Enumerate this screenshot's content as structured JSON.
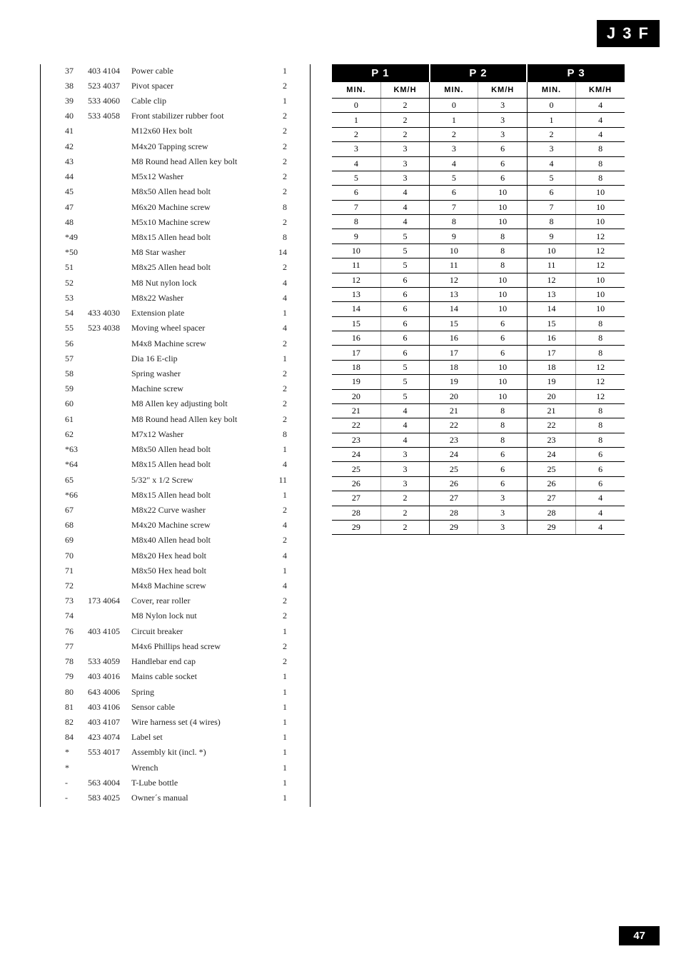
{
  "header_tag": "J 3 F",
  "footer_page": "47",
  "parts": [
    {
      "n": "37",
      "code": "403 4104",
      "desc": "Power cable",
      "q": "1"
    },
    {
      "n": "38",
      "code": "523 4037",
      "desc": "Pivot spacer",
      "q": "2"
    },
    {
      "n": "39",
      "code": "533 4060",
      "desc": "Cable clip",
      "q": "1"
    },
    {
      "n": "40",
      "code": "533 4058",
      "desc": "Front stabilizer rubber foot",
      "q": "2"
    },
    {
      "n": "41",
      "code": "",
      "desc": "M12x60 Hex bolt",
      "q": "2"
    },
    {
      "n": "42",
      "code": "",
      "desc": "M4x20 Tapping screw",
      "q": "2"
    },
    {
      "n": "43",
      "code": "",
      "desc": "M8 Round head Allen key bolt",
      "q": "2"
    },
    {
      "n": "44",
      "code": "",
      "desc": "M5x12 Washer",
      "q": "2"
    },
    {
      "n": "45",
      "code": "",
      "desc": "M8x50 Allen head bolt",
      "q": "2"
    },
    {
      "n": "47",
      "code": "",
      "desc": "M6x20 Machine screw",
      "q": "8"
    },
    {
      "n": "48",
      "code": "",
      "desc": "M5x10 Machine screw",
      "q": "2"
    },
    {
      "n": "*49",
      "code": "",
      "desc": "M8x15 Allen head bolt",
      "q": "8"
    },
    {
      "n": "*50",
      "code": "",
      "desc": "M8 Star washer",
      "q": "14"
    },
    {
      "n": "51",
      "code": "",
      "desc": "M8x25 Allen head bolt",
      "q": "2"
    },
    {
      "n": "52",
      "code": "",
      "desc": "M8 Nut nylon lock",
      "q": "4"
    },
    {
      "n": "53",
      "code": "",
      "desc": "M8x22 Washer",
      "q": "4"
    },
    {
      "n": "54",
      "code": "433 4030",
      "desc": "Extension plate",
      "q": "1"
    },
    {
      "n": "55",
      "code": "523 4038",
      "desc": "Moving wheel spacer",
      "q": "4"
    },
    {
      "n": "56",
      "code": "",
      "desc": "M4x8 Machine screw",
      "q": "2"
    },
    {
      "n": "57",
      "code": "",
      "desc": "Dia 16 E-clip",
      "q": "1"
    },
    {
      "n": "58",
      "code": "",
      "desc": "Spring washer",
      "q": "2"
    },
    {
      "n": "59",
      "code": "",
      "desc": " Machine screw",
      "q": "2"
    },
    {
      "n": "60",
      "code": "",
      "desc": "M8 Allen key adjusting bolt",
      "q": "2"
    },
    {
      "n": "61",
      "code": "",
      "desc": "M8 Round head Allen key bolt",
      "q": "2"
    },
    {
      "n": "62",
      "code": "",
      "desc": "M7x12 Washer",
      "q": "8"
    },
    {
      "n": "*63",
      "code": "",
      "desc": "M8x50 Allen head bolt",
      "q": "1"
    },
    {
      "n": "*64",
      "code": "",
      "desc": "M8x15 Allen head bolt",
      "q": "4"
    },
    {
      "n": "65",
      "code": "",
      "desc": "5/32\" x 1/2 Screw",
      "q": "11"
    },
    {
      "n": "*66",
      "code": "",
      "desc": "M8x15 Allen head bolt",
      "q": "1"
    },
    {
      "n": "67",
      "code": "",
      "desc": "M8x22 Curve washer",
      "q": "2"
    },
    {
      "n": "68",
      "code": "",
      "desc": "M4x20 Machine screw",
      "q": "4"
    },
    {
      "n": "69",
      "code": "",
      "desc": "M8x40 Allen head bolt",
      "q": "2"
    },
    {
      "n": "70",
      "code": "",
      "desc": "M8x20 Hex head bolt",
      "q": "4"
    },
    {
      "n": "71",
      "code": "",
      "desc": "M8x50 Hex head bolt",
      "q": "1"
    },
    {
      "n": "72",
      "code": "",
      "desc": "M4x8 Machine screw",
      "q": "4"
    },
    {
      "n": "73",
      "code": "173 4064",
      "desc": "Cover, rear roller",
      "q": "2"
    },
    {
      "n": "74",
      "code": "",
      "desc": "M8 Nylon lock nut",
      "q": "2"
    },
    {
      "n": "76",
      "code": "403 4105",
      "desc": "Circuit breaker",
      "q": "1"
    },
    {
      "n": "77",
      "code": "",
      "desc": "M4x6 Phillips head screw",
      "q": "2"
    },
    {
      "n": "78",
      "code": "533 4059",
      "desc": "Handlebar end cap",
      "q": "2"
    },
    {
      "n": "79",
      "code": "403 4016",
      "desc": "Mains cable socket",
      "q": "1"
    },
    {
      "n": "80",
      "code": "643 4006",
      "desc": "Spring",
      "q": "1"
    },
    {
      "n": "81",
      "code": "403 4106",
      "desc": " Sensor cable",
      "q": "1"
    },
    {
      "n": "82",
      "code": "403 4107",
      "desc": "Wire harness set (4 wires)",
      "q": "1"
    },
    {
      "n": "84",
      "code": "423 4074",
      "desc": "Label set",
      "q": "1"
    },
    {
      "n": "*",
      "code": "553 4017",
      "desc": " Assembly kit (incl. *)",
      "q": "1"
    },
    {
      "n": "*",
      "code": "",
      "desc": "Wrench",
      "q": "1"
    },
    {
      "n": "-",
      "code": "563 4004",
      "desc": "T-Lube bottle",
      "q": "1"
    },
    {
      "n": "-",
      "code": "583 4025",
      "desc": "Owner´s manual",
      "q": "1"
    }
  ],
  "speed_headers": {
    "p1": "P 1",
    "p2": "P 2",
    "p3": "P 3",
    "min": "MIN.",
    "kmh": "KM/H"
  },
  "speed_rows": [
    {
      "p1m": "0",
      "p1k": "2",
      "p2m": "0",
      "p2k": "3",
      "p3m": "0",
      "p3k": "4"
    },
    {
      "p1m": "1",
      "p1k": "2",
      "p2m": "1",
      "p2k": "3",
      "p3m": "1",
      "p3k": "4"
    },
    {
      "p1m": "2",
      "p1k": "2",
      "p2m": "2",
      "p2k": "3",
      "p3m": "2",
      "p3k": "4"
    },
    {
      "p1m": "3",
      "p1k": "3",
      "p2m": "3",
      "p2k": "6",
      "p3m": "3",
      "p3k": "8"
    },
    {
      "p1m": "4",
      "p1k": "3",
      "p2m": "4",
      "p2k": "6",
      "p3m": "4",
      "p3k": "8"
    },
    {
      "p1m": "5",
      "p1k": "3",
      "p2m": "5",
      "p2k": "6",
      "p3m": "5",
      "p3k": "8"
    },
    {
      "p1m": "6",
      "p1k": "4",
      "p2m": "6",
      "p2k": "10",
      "p3m": "6",
      "p3k": "10"
    },
    {
      "p1m": "7",
      "p1k": "4",
      "p2m": "7",
      "p2k": "10",
      "p3m": "7",
      "p3k": "10"
    },
    {
      "p1m": "8",
      "p1k": "4",
      "p2m": "8",
      "p2k": "10",
      "p3m": "8",
      "p3k": "10"
    },
    {
      "p1m": "9",
      "p1k": "5",
      "p2m": "9",
      "p2k": "8",
      "p3m": "9",
      "p3k": "12"
    },
    {
      "p1m": "10",
      "p1k": "5",
      "p2m": "10",
      "p2k": "8",
      "p3m": "10",
      "p3k": "12"
    },
    {
      "p1m": "11",
      "p1k": "5",
      "p2m": "11",
      "p2k": "8",
      "p3m": "11",
      "p3k": "12"
    },
    {
      "p1m": "12",
      "p1k": "6",
      "p2m": "12",
      "p2k": "10",
      "p3m": "12",
      "p3k": "10"
    },
    {
      "p1m": "13",
      "p1k": "6",
      "p2m": "13",
      "p2k": "10",
      "p3m": "13",
      "p3k": "10"
    },
    {
      "p1m": "14",
      "p1k": "6",
      "p2m": "14",
      "p2k": "10",
      "p3m": "14",
      "p3k": "10"
    },
    {
      "p1m": "15",
      "p1k": "6",
      "p2m": "15",
      "p2k": "6",
      "p3m": "15",
      "p3k": "8"
    },
    {
      "p1m": "16",
      "p1k": "6",
      "p2m": "16",
      "p2k": "6",
      "p3m": "16",
      "p3k": "8"
    },
    {
      "p1m": "17",
      "p1k": "6",
      "p2m": "17",
      "p2k": "6",
      "p3m": "17",
      "p3k": "8"
    },
    {
      "p1m": "18",
      "p1k": "5",
      "p2m": "18",
      "p2k": "10",
      "p3m": "18",
      "p3k": "12"
    },
    {
      "p1m": "19",
      "p1k": "5",
      "p2m": "19",
      "p2k": "10",
      "p3m": "19",
      "p3k": "12"
    },
    {
      "p1m": "20",
      "p1k": "5",
      "p2m": "20",
      "p2k": "10",
      "p3m": "20",
      "p3k": "12"
    },
    {
      "p1m": "21",
      "p1k": "4",
      "p2m": "21",
      "p2k": "8",
      "p3m": "21",
      "p3k": "8"
    },
    {
      "p1m": "22",
      "p1k": "4",
      "p2m": "22",
      "p2k": "8",
      "p3m": "22",
      "p3k": "8"
    },
    {
      "p1m": "23",
      "p1k": "4",
      "p2m": "23",
      "p2k": "8",
      "p3m": "23",
      "p3k": "8"
    },
    {
      "p1m": "24",
      "p1k": "3",
      "p2m": "24",
      "p2k": "6",
      "p3m": "24",
      "p3k": "6"
    },
    {
      "p1m": "25",
      "p1k": "3",
      "p2m": "25",
      "p2k": "6",
      "p3m": "25",
      "p3k": "6"
    },
    {
      "p1m": "26",
      "p1k": "3",
      "p2m": "26",
      "p2k": "6",
      "p3m": "26",
      "p3k": "6"
    },
    {
      "p1m": "27",
      "p1k": "2",
      "p2m": "27",
      "p2k": "3",
      "p3m": "27",
      "p3k": "4"
    },
    {
      "p1m": "28",
      "p1k": "2",
      "p2m": "28",
      "p2k": "3",
      "p3m": "28",
      "p3k": "4"
    },
    {
      "p1m": "29",
      "p1k": "2",
      "p2m": "29",
      "p2k": "3",
      "p3m": "29",
      "p3k": "4"
    }
  ]
}
